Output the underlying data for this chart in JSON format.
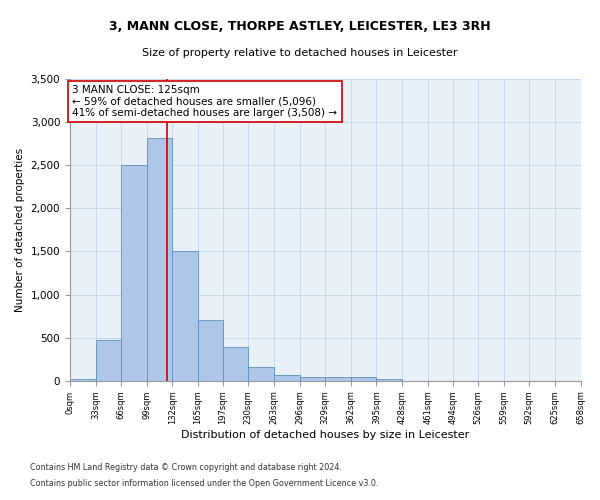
{
  "title1": "3, MANN CLOSE, THORPE ASTLEY, LEICESTER, LE3 3RH",
  "title2": "Size of property relative to detached houses in Leicester",
  "xlabel": "Distribution of detached houses by size in Leicester",
  "ylabel": "Number of detached properties",
  "bar_values": [
    20,
    470,
    2500,
    2820,
    1510,
    710,
    390,
    155,
    70,
    50,
    40,
    50,
    20,
    0,
    0,
    0,
    0,
    0,
    0,
    0
  ],
  "bin_edges": [
    0,
    33,
    66,
    99,
    132,
    165,
    197,
    230,
    263,
    296,
    329,
    362,
    395,
    428,
    461,
    494,
    526,
    559,
    592,
    625,
    658
  ],
  "bar_color": "#aec6e8",
  "bar_edge_color": "#6090c0",
  "grid_color": "#c8d8ea",
  "property_size": 125,
  "vline_color": "#cc0000",
  "annotation_text": "3 MANN CLOSE: 125sqm\n← 59% of detached houses are smaller (5,096)\n41% of semi-detached houses are larger (3,508) →",
  "annotation_box_color": "#ffffff",
  "annotation_box_edge_color": "#cc0000",
  "ylim": [
    0,
    3500
  ],
  "yticks": [
    0,
    500,
    1000,
    1500,
    2000,
    2500,
    3000,
    3500
  ],
  "footnote1": "Contains HM Land Registry data © Crown copyright and database right 2024.",
  "footnote2": "Contains public sector information licensed under the Open Government Licence v3.0.",
  "bg_color": "#e8f0f8"
}
